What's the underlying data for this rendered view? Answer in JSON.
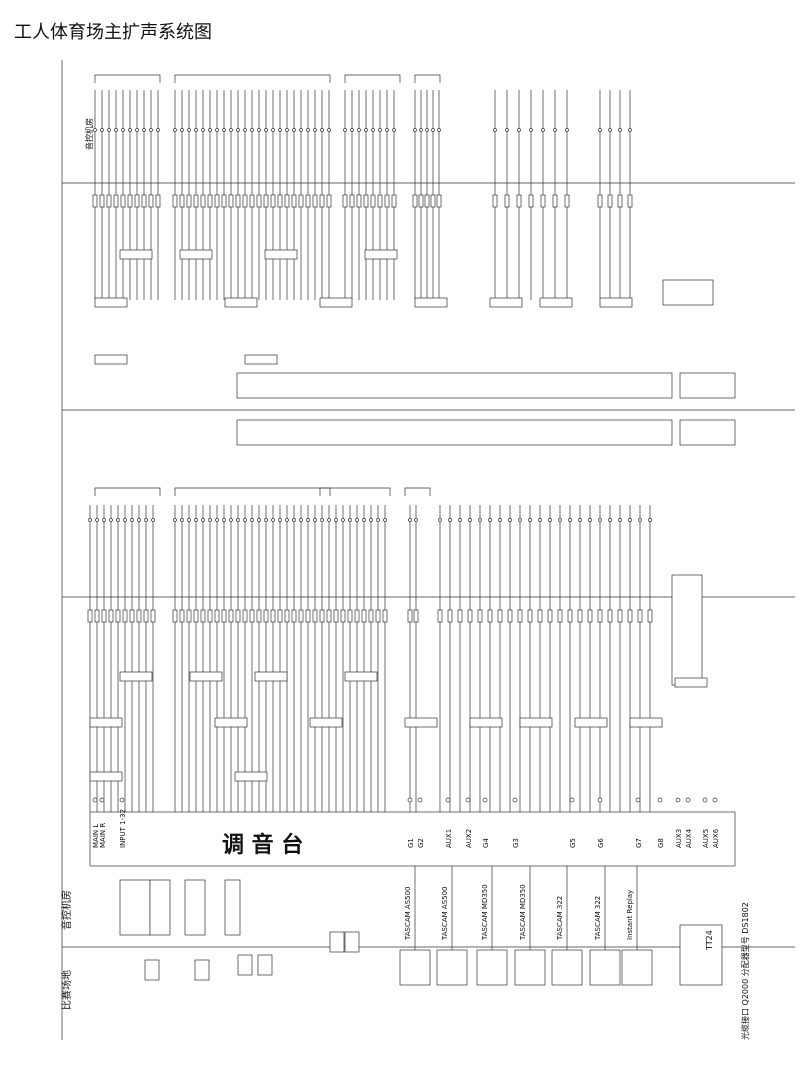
{
  "title": "工人体育场主扩声系统图",
  "console_label": "调 音 台",
  "labels": {
    "control_room_top": "音控机房",
    "control_room_bottom": "音控机房",
    "field": "比赛场地"
  },
  "console_ports": [
    "MAIN L",
    "MAIN R",
    "INPUT 1-32",
    "G1",
    "G2",
    "AUX1",
    "AUX2",
    "G4",
    "G3",
    "G5",
    "G6",
    "G7",
    "G8",
    "AUX3",
    "AUX4",
    "AUX5",
    "AUX6"
  ],
  "recorders": [
    "TASCAM AS500",
    "TASCAM AS500",
    "TASCAM MD350",
    "TASCAM MD350",
    "TASCAM 322",
    "TASCAM 322",
    "Instant Replay"
  ],
  "tt24": "TT24",
  "side_note": "光缆接口 Q2000  分配器型号 DS1802"
}
